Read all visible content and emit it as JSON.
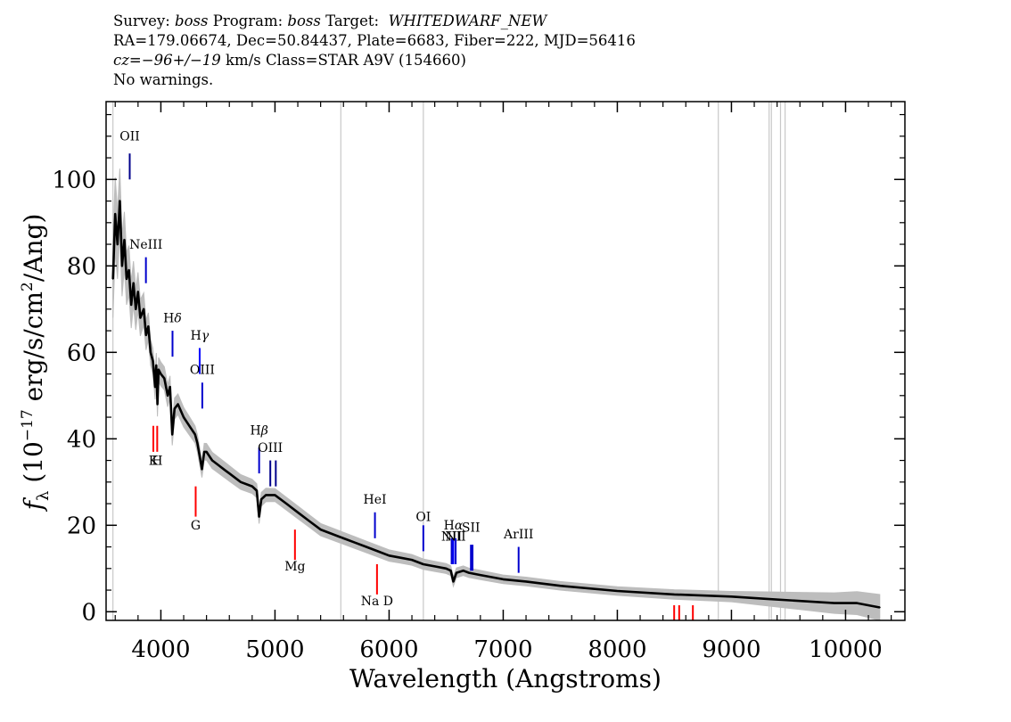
{
  "header": {
    "line1": {
      "survey_label": "Survey:",
      "survey": "boss",
      "program_label": "Program:",
      "program": "boss",
      "target_label": "Target:",
      "target": "WHITEDWARF_NEW"
    },
    "line2": "RA=179.06674, Dec=50.84437, Plate=6683, Fiber=222, MJD=56416",
    "line3": {
      "cz_label": "cz=",
      "cz_value": "−96+/−19",
      "cz_unit": "km/s",
      "class_text": "Class=STAR A9V (154660)"
    },
    "line4": "No warnings."
  },
  "chart_data": {
    "type": "line",
    "title": "",
    "xlabel": "Wavelength (Angstroms)",
    "ylabel": "f_λ (10^-17 erg/s/cm^2/Ang)",
    "ylabel_parts": {
      "f": "f",
      "sub": "λ",
      "pre": "(10",
      "exp": "−17",
      "mid": " erg/s/cm",
      "exp2": "2",
      "post": "/Ang)"
    },
    "xlim": [
      3520,
      10520
    ],
    "ylim": [
      -2,
      118
    ],
    "xticks": [
      4000,
      5000,
      6000,
      7000,
      8000,
      9000,
      10000
    ],
    "yticks": [
      0,
      20,
      40,
      60,
      80,
      100
    ],
    "series": [
      {
        "role": "flux",
        "color": "#000000",
        "x": [
          3580,
          3600,
          3620,
          3640,
          3660,
          3680,
          3700,
          3720,
          3740,
          3760,
          3780,
          3800,
          3820,
          3850,
          3870,
          3890,
          3910,
          3930,
          3950,
          3960,
          3970,
          3980,
          4000,
          4030,
          4060,
          4080,
          4100,
          4120,
          4150,
          4200,
          4250,
          4300,
          4320,
          4340,
          4360,
          4380,
          4400,
          4450,
          4500,
          4550,
          4600,
          4700,
          4800,
          4840,
          4861,
          4880,
          4920,
          5000,
          5100,
          5200,
          5300,
          5400,
          5500,
          5600,
          5700,
          5800,
          5900,
          6000,
          6100,
          6200,
          6300,
          6400,
          6500,
          6540,
          6563,
          6590,
          6650,
          6700,
          6800,
          7000,
          7200,
          7500,
          8000,
          8500,
          9000,
          9300,
          9600,
          9900,
          10100,
          10300
        ],
        "y": [
          77,
          92,
          85,
          95,
          80,
          86,
          77,
          79,
          71,
          76,
          70,
          74,
          68,
          70,
          64,
          66,
          60,
          58,
          52,
          57,
          48,
          56,
          55,
          54,
          50,
          52,
          41,
          47,
          48,
          45,
          43,
          41,
          39,
          36,
          33,
          37,
          37,
          35,
          34,
          33,
          32,
          30,
          29,
          28,
          22,
          26,
          27,
          27,
          25,
          23,
          21,
          19,
          18,
          17,
          16,
          15,
          14,
          13,
          12.5,
          12,
          11,
          10.5,
          10,
          9.5,
          7,
          9,
          9.5,
          9,
          8.5,
          7.5,
          7,
          6,
          4.8,
          4,
          3.5,
          3,
          2.5,
          2,
          2,
          1
        ]
      },
      {
        "role": "error",
        "color": "#bdbdbd",
        "x": [
          3580,
          3700,
          3900,
          4300,
          5000,
          6000,
          7000,
          8000,
          9000,
          10000,
          10300
        ],
        "y": [
          9,
          6,
          3,
          2,
          1.5,
          1.3,
          1,
          1,
          1.2,
          2.5,
          3
        ]
      }
    ],
    "sky_lines_x": [
      3580,
      5577,
      6300,
      8885,
      9330,
      9350,
      9430,
      9470
    ],
    "line_markers": [
      {
        "label": "OII",
        "x": 3727,
        "y0": 100,
        "y1": 106,
        "color": "#00008b",
        "label_y": 109,
        "sup": ""
      },
      {
        "label": "NeIII",
        "x": 3869,
        "y0": 76,
        "y1": 82,
        "color": "#0000cd",
        "label_y": 84,
        "sup": ""
      },
      {
        "label": "H",
        "x": 4102,
        "y0": 59,
        "y1": 65,
        "color": "#0000cd",
        "label_y": 67,
        "sup": "δ"
      },
      {
        "label": "H",
        "x": 4340,
        "y0": 55,
        "y1": 61,
        "color": "#0000ff",
        "label_y": 63,
        "sup": "γ"
      },
      {
        "label": "OIII",
        "x": 4363,
        "y0": 47,
        "y1": 53,
        "color": "#0000cd",
        "label_y": 55,
        "sup": ""
      },
      {
        "label": "H",
        "x": 4861,
        "y0": 32,
        "y1": 38,
        "color": "#0000cd",
        "label_y": 41,
        "sup": "β"
      },
      {
        "label": "OIII",
        "x": 4959,
        "y0": 29,
        "y1": 35,
        "color": "#00008b",
        "label_y": 37,
        "sup": ""
      },
      {
        "label": "OIII",
        "x": 5007,
        "y0": 29,
        "y1": 35,
        "color": "#00008b",
        "label_y": null,
        "sup": ""
      },
      {
        "label": "HeI",
        "x": 5876,
        "y0": 17,
        "y1": 23,
        "color": "#0000cd",
        "label_y": 25,
        "sup": ""
      },
      {
        "label": "OI",
        "x": 6300,
        "y0": 14,
        "y1": 20,
        "color": "#0000cd",
        "label_y": 21,
        "sup": ""
      },
      {
        "label": "NII",
        "x": 6548,
        "y0": 11,
        "y1": 17,
        "color": "#0000cd",
        "label_y": 16.5,
        "sup": ""
      },
      {
        "label": "H",
        "x": 6563,
        "y0": 11,
        "y1": 17,
        "color": "#0000ff",
        "label_y": 19,
        "sup": "α"
      },
      {
        "label": "NII",
        "x": 6583,
        "y0": 11,
        "y1": 17,
        "color": "#0000cd",
        "label_y": 16.5,
        "sup": ""
      },
      {
        "label": "SII",
        "x": 6717,
        "y0": 9.5,
        "y1": 15.5,
        "color": "#0000cd",
        "label_y": 18.5,
        "sup": ""
      },
      {
        "label": "SII",
        "x": 6731,
        "y0": 9.5,
        "y1": 15.5,
        "color": "#0000cd",
        "label_y": null,
        "sup": ""
      },
      {
        "label": "ArIII",
        "x": 7135,
        "y0": 9,
        "y1": 15,
        "color": "#0000cd",
        "label_y": 17,
        "sup": ""
      },
      {
        "label": "K",
        "x": 3934,
        "y0": 37,
        "y1": 43,
        "color": "#ff0000",
        "label_y": 34,
        "sup": ""
      },
      {
        "label": "H",
        "x": 3968,
        "y0": 37,
        "y1": 43,
        "color": "#ff0000",
        "label_y": 34,
        "sup": ""
      },
      {
        "label": "G",
        "x": 4305,
        "y0": 22,
        "y1": 29,
        "color": "#ff0000",
        "label_y": 19,
        "sup": ""
      },
      {
        "label": "Mg",
        "x": 5175,
        "y0": 12,
        "y1": 19,
        "color": "#ff0000",
        "label_y": 9.5,
        "sup": ""
      },
      {
        "label": "Na D",
        "x": 5894,
        "y0": 4,
        "y1": 11,
        "color": "#ff0000",
        "label_y": 1.5,
        "sup": ""
      },
      {
        "label": "",
        "x": 8498,
        "y0": -2,
        "y1": 1.5,
        "color": "#ff0000",
        "label_y": null,
        "sup": ""
      },
      {
        "label": "",
        "x": 8542,
        "y0": -2,
        "y1": 1.5,
        "color": "#ff0000",
        "label_y": null,
        "sup": ""
      },
      {
        "label": "",
        "x": 8662,
        "y0": -2,
        "y1": 1.5,
        "color": "#ff0000",
        "label_y": null,
        "sup": ""
      }
    ]
  }
}
